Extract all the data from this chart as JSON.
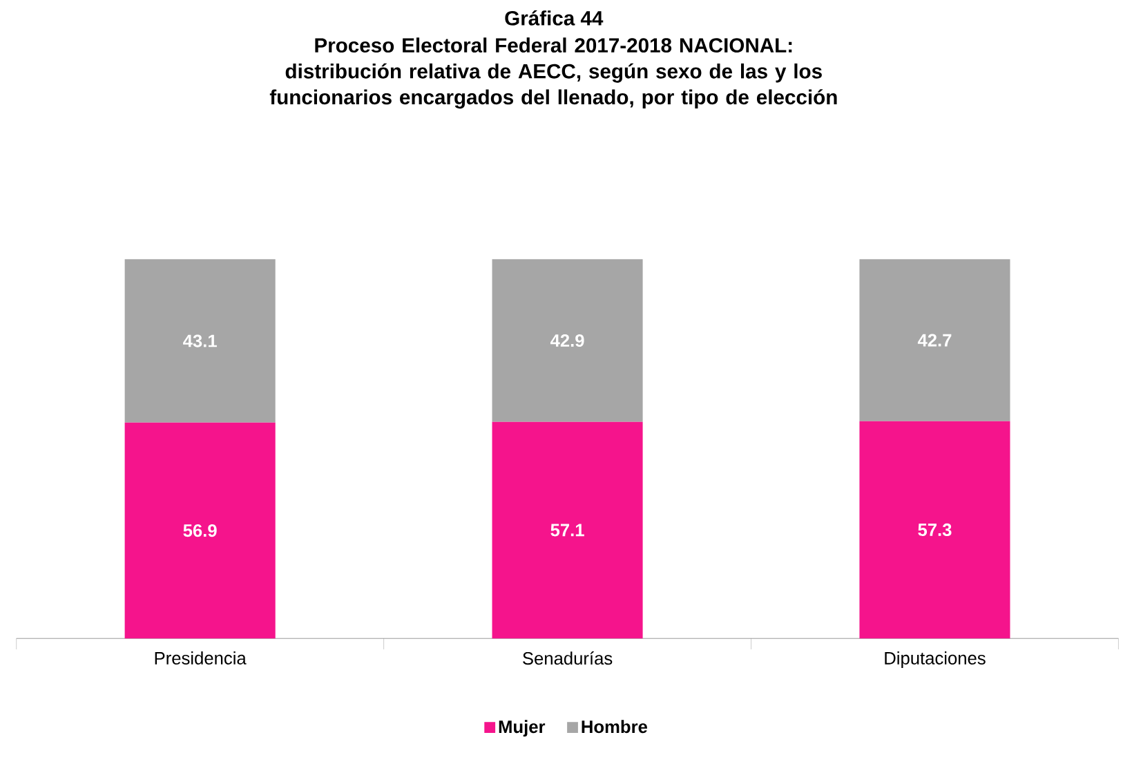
{
  "chart_data": {
    "type": "bar",
    "stacked": true,
    "data_labels": true,
    "legend": "bottom",
    "title": "Gráfica 44",
    "subtitle": "Proceso Electoral Federal 2017-2018 NACIONAL: distribución relativa de AECC, según sexo de las y los funcionarios encargados del llenado, por tipo de elección",
    "categories": [
      "Presidencia",
      "Senadurías",
      "Diputaciones"
    ],
    "series": [
      {
        "name": "Mujer",
        "color": "#f5148c",
        "values": [
          56.9,
          57.1,
          57.3
        ]
      },
      {
        "name": "Hombre",
        "color": "#a6a6a6",
        "values": [
          43.1,
          42.9,
          42.7
        ]
      }
    ]
  }
}
